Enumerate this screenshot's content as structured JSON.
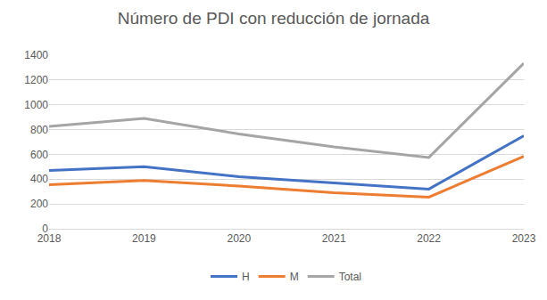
{
  "chart_data": {
    "type": "line",
    "title": "Número de PDI con reducción de jornada",
    "categories": [
      "2018",
      "2019",
      "2020",
      "2021",
      "2022",
      "2023"
    ],
    "series": [
      {
        "name": "H",
        "color": "#4472c4",
        "values": [
          470,
          500,
          420,
          370,
          320,
          750
        ]
      },
      {
        "name": "M",
        "color": "#ed7d31",
        "values": [
          355,
          390,
          345,
          290,
          255,
          585
        ]
      },
      {
        "name": "Total",
        "color": "#a5a5a5",
        "values": [
          825,
          890,
          765,
          660,
          575,
          1335
        ]
      }
    ],
    "ylim": [
      0,
      1400
    ],
    "yticks": [
      0,
      200,
      400,
      600,
      800,
      1000,
      1200,
      1400
    ],
    "grid": true,
    "legend": "bottom"
  }
}
